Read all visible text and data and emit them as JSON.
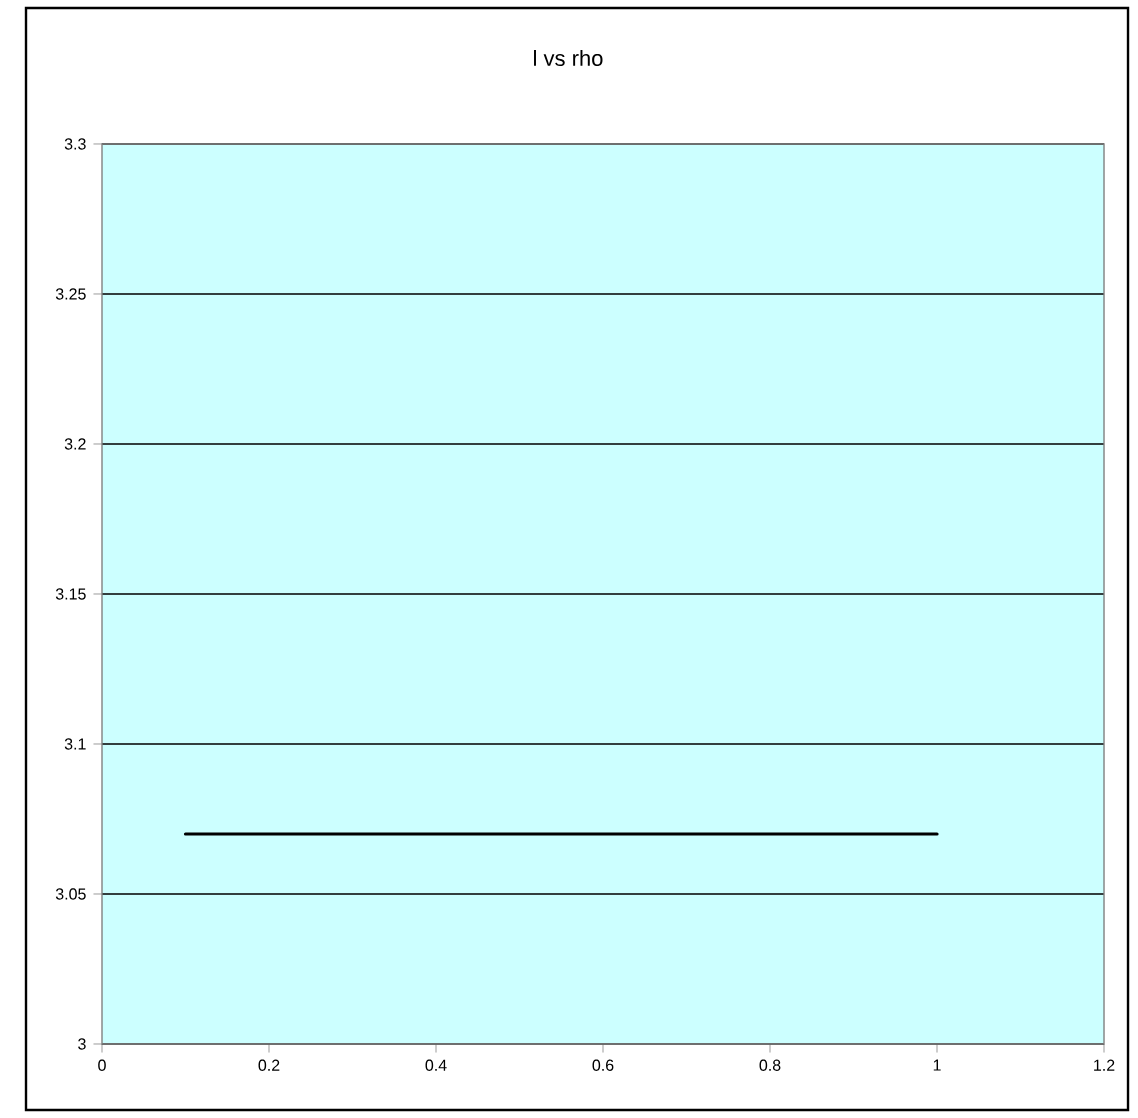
{
  "chart_data": {
    "type": "line",
    "title": "l vs rho",
    "series": [
      {
        "color": "#000000",
        "x": [
          0.1,
          1
        ],
        "values": [
          3.07,
          3.07
        ]
      }
    ],
    "xlim": [
      0,
      1.2
    ],
    "xticks": [
      0,
      0.2,
      0.4,
      0.6,
      0.8,
      1,
      1.2
    ],
    "ylim": [
      3,
      3.3
    ],
    "yticks": [
      3,
      3.05,
      3.1,
      3.15,
      3.2,
      3.25,
      3.3
    ],
    "grid": "y",
    "marker": "none",
    "line_style": "solid"
  }
}
